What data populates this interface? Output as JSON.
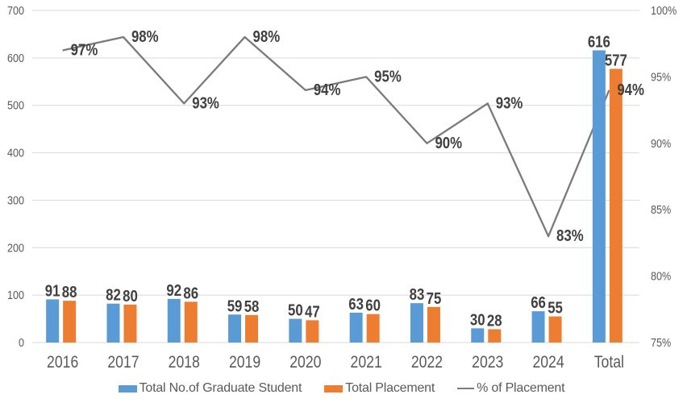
{
  "chart_data": {
    "type": "combo-bar-line",
    "title": "",
    "categories": [
      "2016",
      "2017",
      "2018",
      "2019",
      "2020",
      "2021",
      "2022",
      "2023",
      "2024",
      "Total"
    ],
    "series": [
      {
        "name": "Total No.of Graduate Student",
        "type": "bar",
        "axis": "left",
        "color": "#5B9BD5",
        "values": [
          91,
          82,
          92,
          59,
          50,
          63,
          83,
          30,
          66,
          616
        ]
      },
      {
        "name": "Total Placement",
        "type": "bar",
        "axis": "left",
        "color": "#ED7D31",
        "values": [
          88,
          80,
          86,
          58,
          47,
          60,
          75,
          28,
          55,
          577
        ]
      },
      {
        "name": "% of Placement",
        "type": "line",
        "axis": "right",
        "color": "#7A7A7A",
        "values": [
          97,
          98,
          93,
          98,
          94,
          95,
          90,
          93,
          83,
          94
        ],
        "point_labels": [
          "97%",
          "98%",
          "93%",
          "98%",
          "94%",
          "95%",
          "90%",
          "93%",
          "83%",
          "94%"
        ]
      }
    ],
    "left_axis": {
      "min": 0,
      "max": 700,
      "step": 100,
      "tick_labels": [
        "0",
        "100",
        "200",
        "300",
        "400",
        "500",
        "600",
        "700"
      ]
    },
    "right_axis": {
      "min": 75,
      "max": 100,
      "step": 5,
      "tick_labels": [
        "75%",
        "80%",
        "85%",
        "90%",
        "95%",
        "100%"
      ]
    },
    "gridlines": true,
    "legend_position": "bottom"
  },
  "styles": {
    "background": "#FFFFFF",
    "gridline_color": "#D9D9D9",
    "axis_text_color": "#595959",
    "category_text_color": "#595959",
    "data_label_color": "#404040",
    "bar_blue": "#5B9BD5",
    "bar_orange": "#ED7D31",
    "line_gray": "#7A7A7A"
  }
}
